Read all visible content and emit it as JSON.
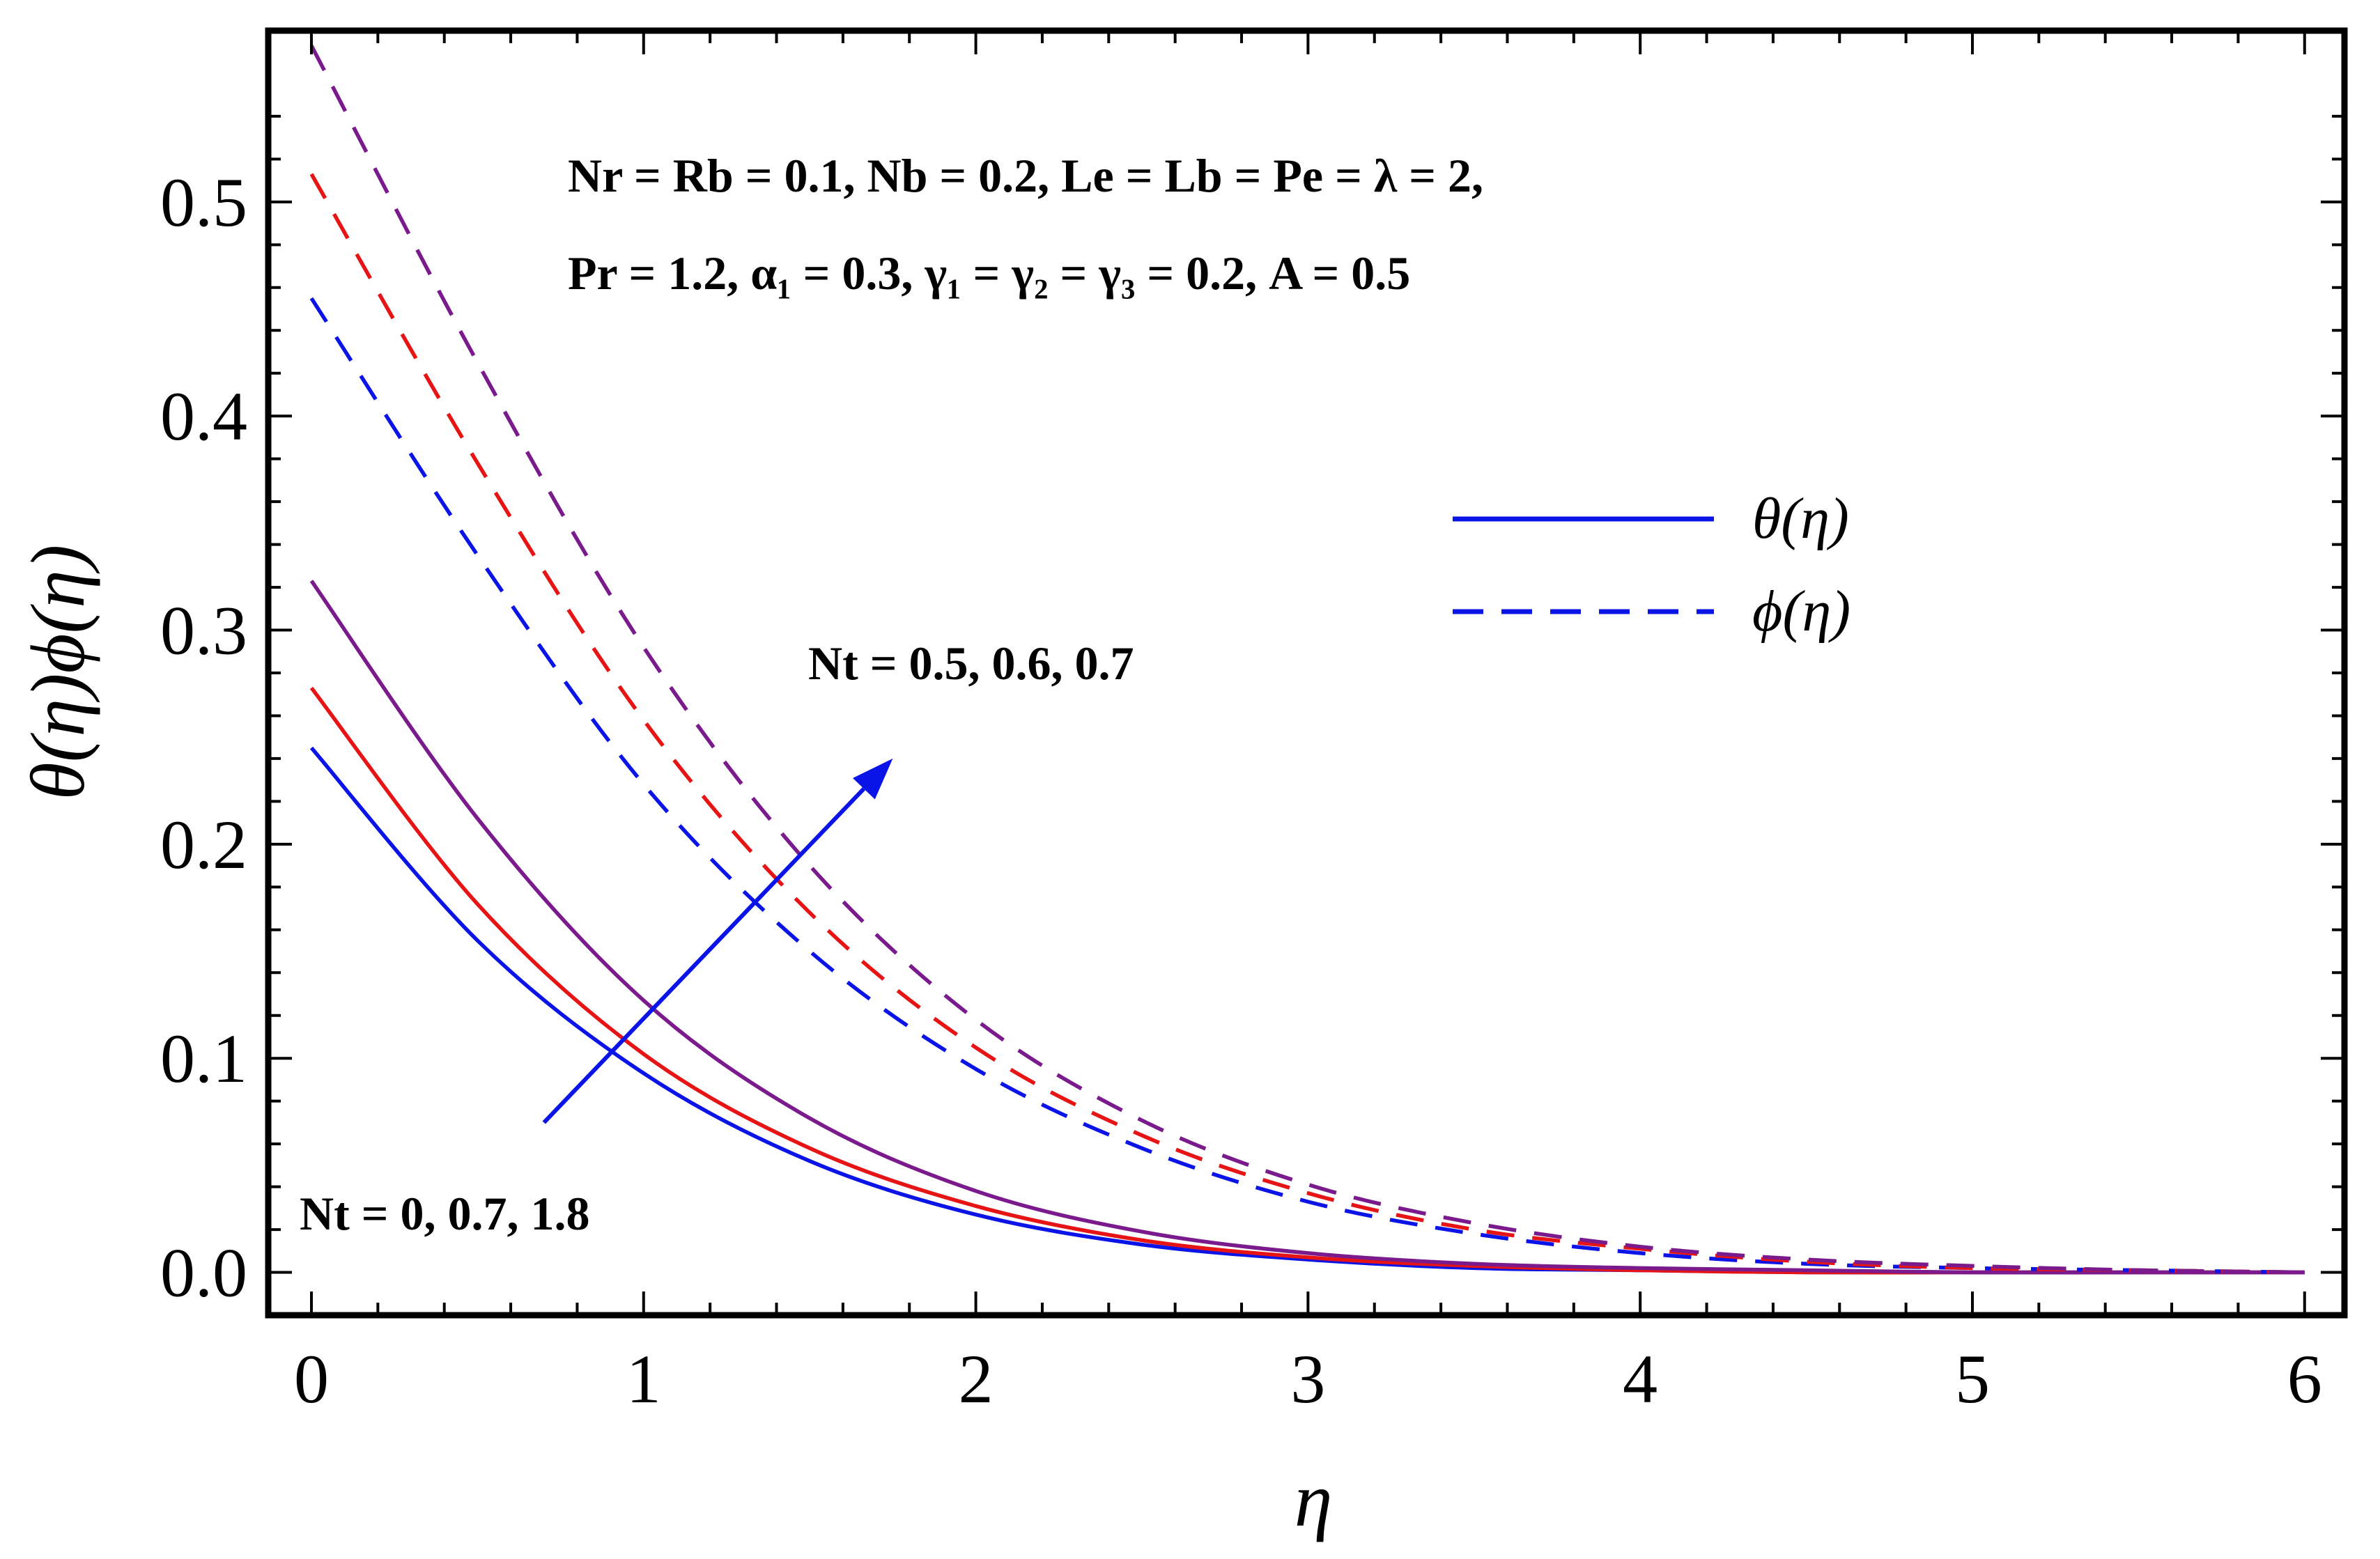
{
  "chart_data": {
    "type": "line",
    "xlabel": "η",
    "ylabel": "θ(η)ϕ(η)",
    "xlim": [
      -0.13,
      6.12
    ],
    "ylim": [
      -0.02,
      0.58
    ],
    "x_ticks": [
      0,
      1,
      2,
      3,
      4,
      5,
      6
    ],
    "x_tick_labels": [
      "0",
      "1",
      "2",
      "3",
      "4",
      "5",
      "6"
    ],
    "y_ticks": [
      0.0,
      0.1,
      0.2,
      0.3,
      0.4,
      0.5
    ],
    "y_tick_labels": [
      "0.0",
      "0.1",
      "0.2",
      "0.3",
      "0.4",
      "0.5"
    ],
    "grid": false,
    "legend_position": "top-right",
    "legend": [
      {
        "label": "θ(η)",
        "style": "solid",
        "color": "#0a14e6"
      },
      {
        "label": "ϕ(η)",
        "style": "dashed",
        "color": "#0a14e6"
      }
    ],
    "annotations": {
      "params_line1": "Nr = Rb = 0.1, Nb = 0.2, Le = Lb = Pe = λ = 2,",
      "params_line2": "Pr = 1.2, α₁ = 0.3, γ₁ = γ₂ = γ₃ = 0.2, A = 0.5",
      "arrow_label_top": "Nt = 0.5, 0.6, 0.7",
      "arrow_label_bottom": "Nt = 0, 0.7, 1.8"
    },
    "x": [
      0,
      0.5,
      1.0,
      1.5,
      2.0,
      2.5,
      3.0,
      3.5,
      4.0,
      4.5,
      5.0,
      5.5,
      6.0
    ],
    "series": [
      {
        "style": "solid",
        "color": "#0a14e6",
        "values": [
          0.245,
          0.155,
          0.093,
          0.052,
          0.027,
          0.013,
          0.006,
          0.002,
          0.001,
          0.0,
          0.0,
          0.0,
          0.0
        ]
      },
      {
        "style": "solid",
        "color": "#e61414",
        "values": [
          0.273,
          0.172,
          0.102,
          0.058,
          0.031,
          0.015,
          0.007,
          0.003,
          0.001,
          0.0,
          0.0,
          0.0,
          0.0
        ]
      },
      {
        "style": "solid",
        "color": "#7a1a8c",
        "values": [
          0.323,
          0.212,
          0.127,
          0.072,
          0.038,
          0.019,
          0.009,
          0.004,
          0.002,
          0.001,
          0.0,
          0.0,
          0.0
        ]
      },
      {
        "style": "dashed",
        "color": "#0a14e6",
        "values": [
          0.455,
          0.335,
          0.228,
          0.15,
          0.095,
          0.058,
          0.033,
          0.018,
          0.009,
          0.004,
          0.002,
          0.001,
          0.0
        ]
      },
      {
        "style": "dashed",
        "color": "#e61414",
        "values": [
          0.513,
          0.378,
          0.258,
          0.168,
          0.105,
          0.064,
          0.037,
          0.02,
          0.011,
          0.005,
          0.002,
          0.001,
          0.0
        ]
      },
      {
        "style": "dashed",
        "color": "#7a1a8c",
        "values": [
          0.573,
          0.425,
          0.292,
          0.19,
          0.118,
          0.071,
          0.041,
          0.023,
          0.012,
          0.006,
          0.003,
          0.001,
          0.0
        ]
      }
    ],
    "arrow": {
      "from": [
        0.7,
        0.07
      ],
      "to": [
        1.75,
        0.24
      ],
      "color": "#0a14e6"
    }
  }
}
